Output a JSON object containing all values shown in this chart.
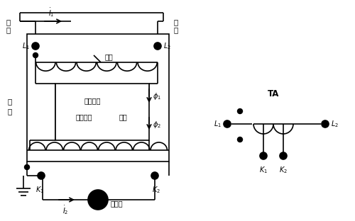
{
  "bg_color": "#ffffff",
  "line_color": "#000000",
  "fig_width": 5.0,
  "fig_height": 3.12,
  "dpi": 100,
  "labels": {
    "dianyuan": "电\n源",
    "fuhao": "负\n荷",
    "i1": "$\\dot{I}_1$",
    "i2": "$\\dot{I}_2$",
    "L1": "$L_1$",
    "L2": "$L_2$",
    "K1": "$K_1$",
    "K2": "$K_2$",
    "phi1": "$\\phi_1$",
    "phi2": "$\\phi_2$",
    "tiexi": "铁\n芯",
    "yicizuzu": "一次绕组",
    "ercizuzu": "二次绕组",
    "shangzhu": "上柱",
    "xiazhu": "下柱",
    "dianlubiao": "电流表",
    "TA": "TA",
    "TA_L1": "$L_1$",
    "TA_L2": "$L_2$",
    "TA_K1": "$K_1$",
    "TA_K2": "$K_2$"
  }
}
